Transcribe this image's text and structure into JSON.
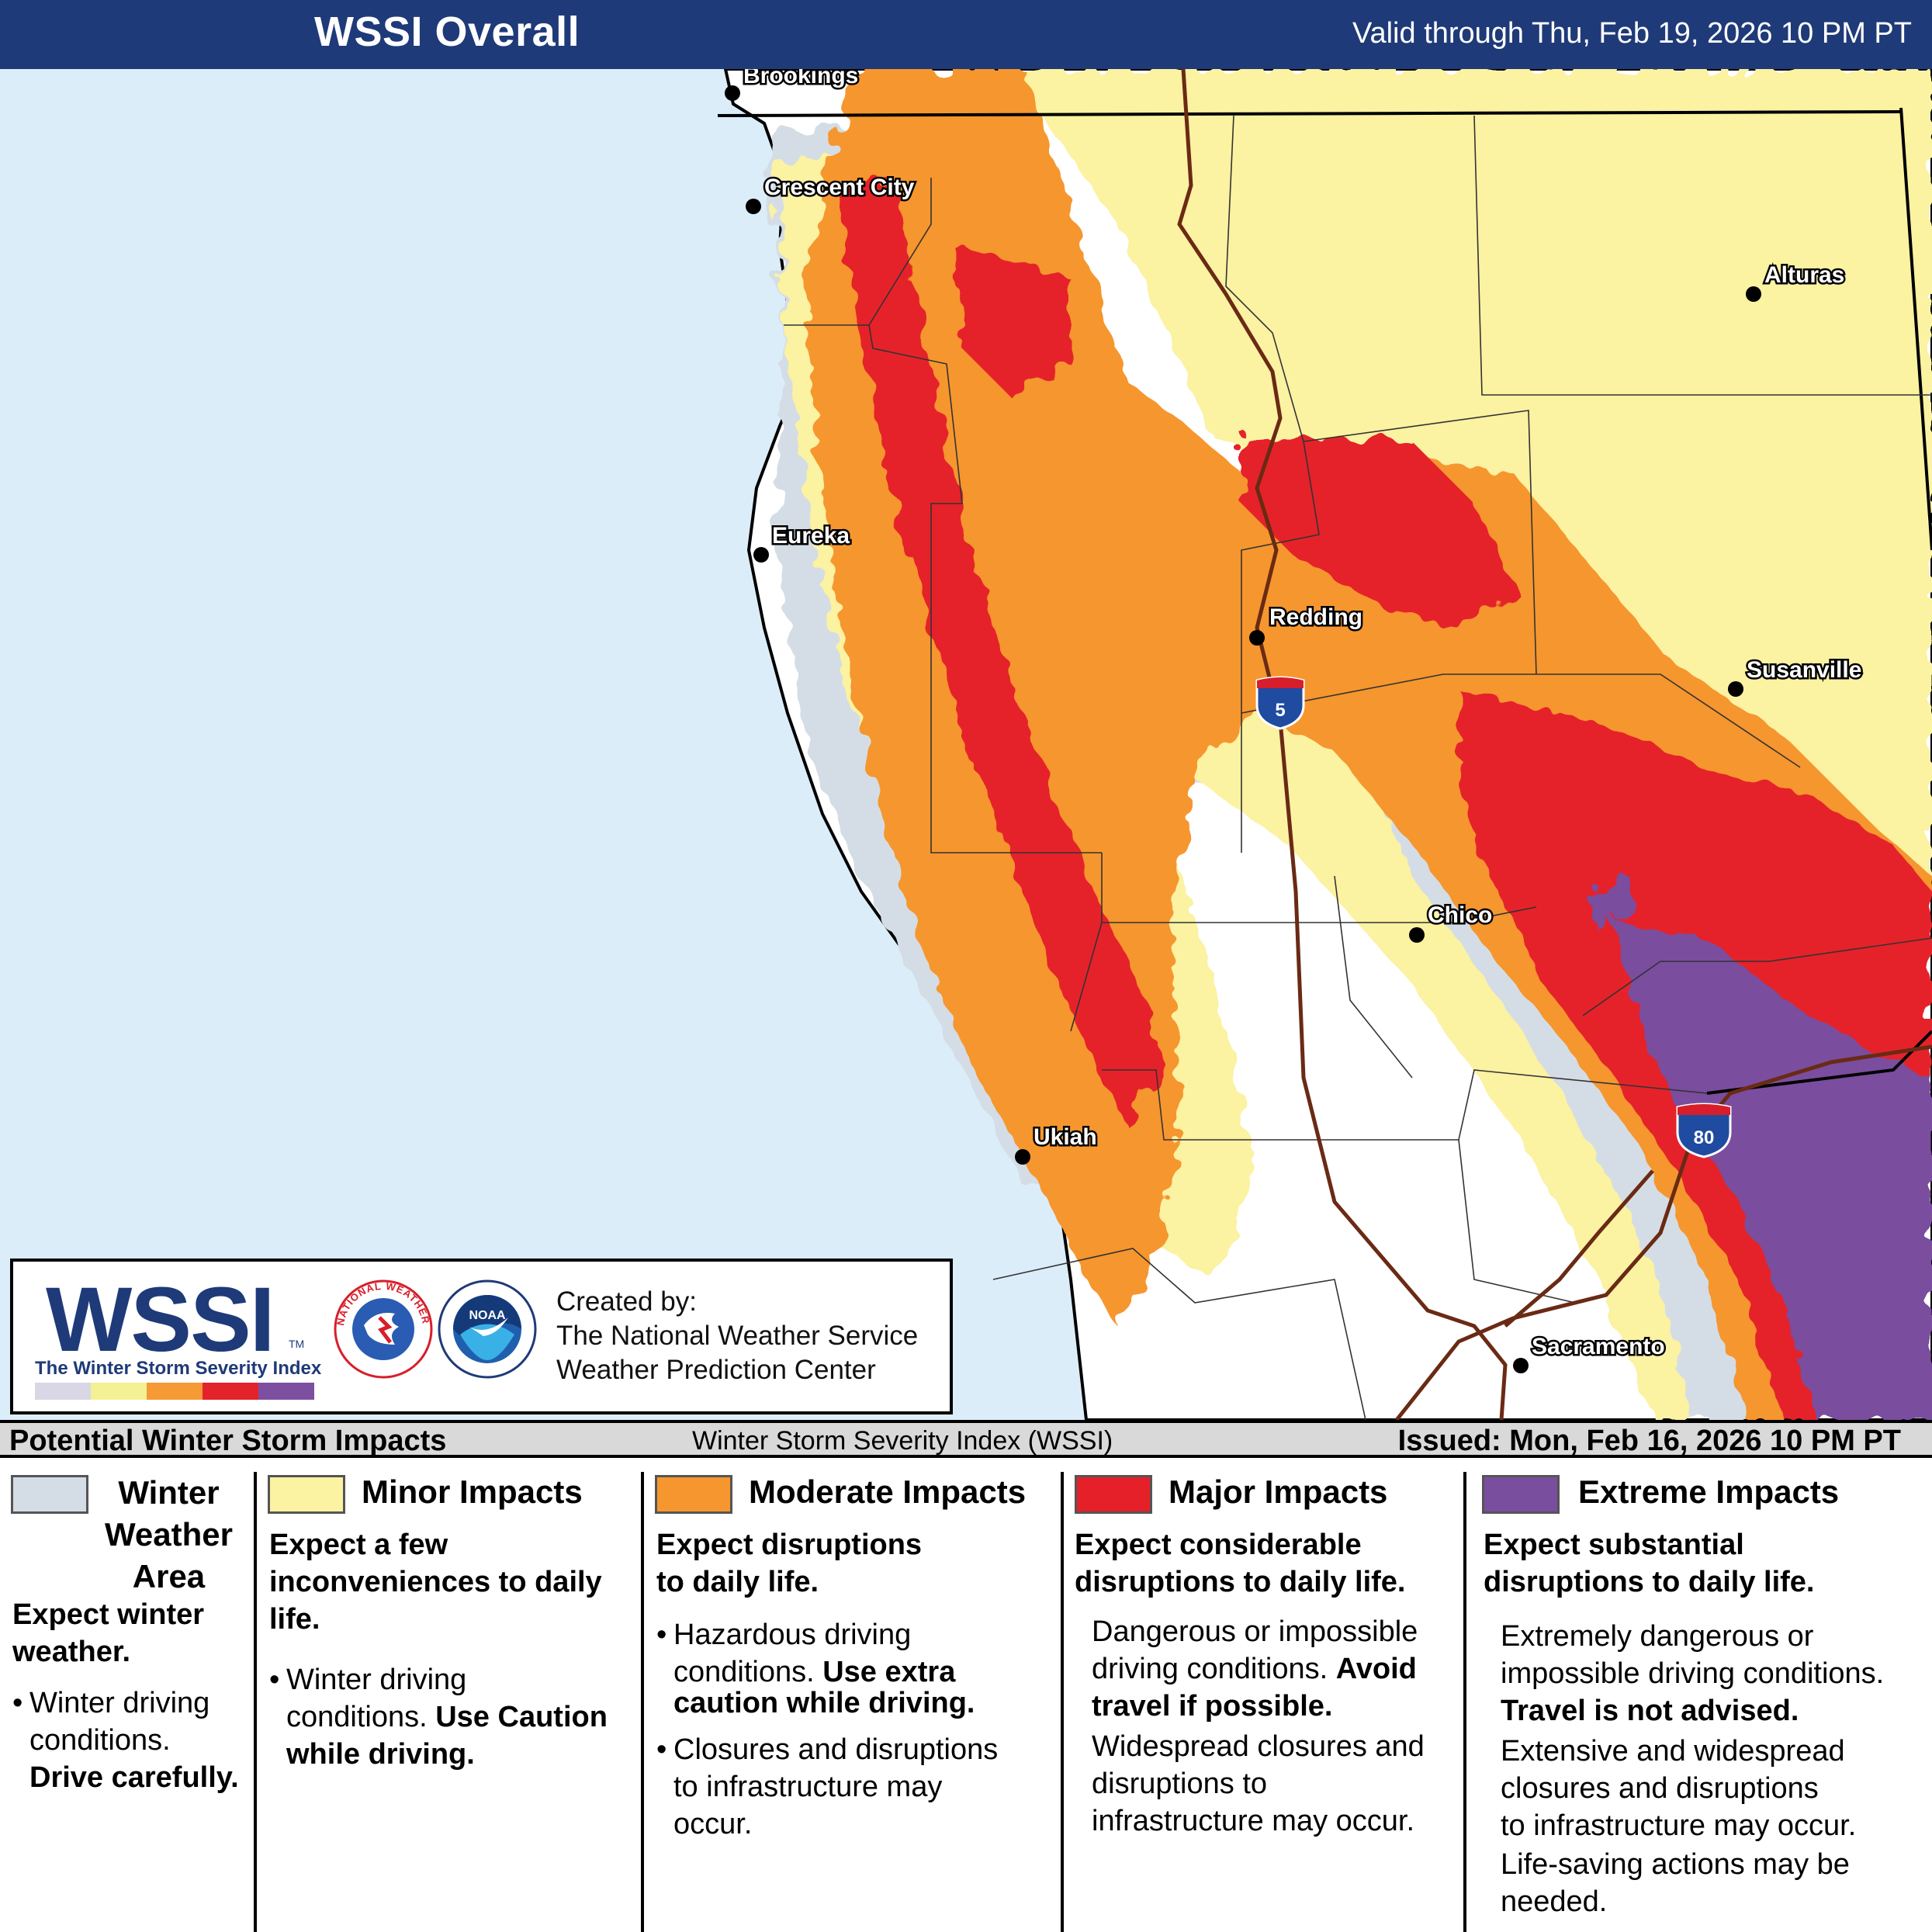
{
  "header": {
    "title": "WSSI Overall",
    "valid": "Valid through Thu, Feb 19, 2026 10 PM PT"
  },
  "map": {
    "cities": [
      "Brookings",
      "Crescent City",
      "Alturas",
      "Eureka",
      "Redding",
      "Susanville",
      "Chico",
      "Ukiah",
      "Sacramento"
    ],
    "highways": [
      "5",
      "80"
    ]
  },
  "logo": {
    "wssi": "WSSI",
    "tm": "TM",
    "subtitle": "The Winter Storm Severity Index",
    "created_by": [
      "Created by:",
      "The National Weather Service",
      "Weather Prediction Center"
    ],
    "nws_seal_text": "NATIONAL WEATHER SERVICE",
    "noaa_seal_text": "NOAA",
    "bar_colors": [
      "#d9d6e6",
      "#f4f194",
      "#f59a35",
      "#e4222b",
      "#7d4fa0"
    ]
  },
  "legend_header": {
    "title": "Potential Winter Storm Impacts",
    "center": "Winter Storm Severity Index (WSSI)",
    "issued": "Issued: Mon, Feb 16, 2026 10 PM PT"
  },
  "legend": {
    "winter": {
      "color": "#d4dde5",
      "label_lines": [
        "Winter",
        "Weather",
        "Area"
      ],
      "summary_lines": [
        "Expect winter",
        "weather."
      ],
      "bullet_lines": [
        "Winter driving",
        "conditions."
      ],
      "bold": "Drive carefully."
    },
    "minor": {
      "color": "#fbf2a2",
      "label": "Minor Impacts",
      "summary_lines": [
        "Expect a few",
        "inconveniences to daily",
        "life."
      ],
      "bullet_pre": "Winter driving",
      "bullet_mid": "conditions.",
      "bullet_bold": "Use Caution",
      "bullet_bold2": "while driving."
    },
    "moderate": {
      "color": "#f6962f",
      "label": "Moderate Impacts",
      "summary_lines": [
        "Expect disruptions",
        "to daily life."
      ],
      "b1_line1": "Hazardous driving",
      "b1_line2": "conditions.",
      "b1_bold": "Use extra",
      "b1_bold2": "caution while driving.",
      "b2_lines": [
        "Closures and disruptions",
        "to infrastructure may",
        "occur."
      ]
    },
    "major": {
      "color": "#e52029",
      "label": "Major Impacts",
      "summary_lines": [
        "Expect considerable",
        "disruptions to daily life."
      ],
      "p1_line1": "Dangerous or impossible",
      "p1_line2": "driving conditions.",
      "p1_bold": "Avoid",
      "p1_bold2": "travel if possible.",
      "p2_lines": [
        "Widespread closures and",
        "disruptions to",
        "infrastructure may occur."
      ]
    },
    "extreme": {
      "color": "#7a4e9e",
      "label": "Extreme Impacts",
      "summary_lines": [
        "Expect substantial",
        "disruptions to daily life."
      ],
      "p1_lines": [
        "Extremely dangerous or",
        "impossible driving conditions."
      ],
      "p1_bold": "Travel is not advised.",
      "p2_lines": [
        "Extensive and widespread",
        "closures and disruptions",
        "to infrastructure may occur."
      ],
      "p3_lines": [
        "Life-saving actions may be",
        "needed."
      ]
    }
  }
}
